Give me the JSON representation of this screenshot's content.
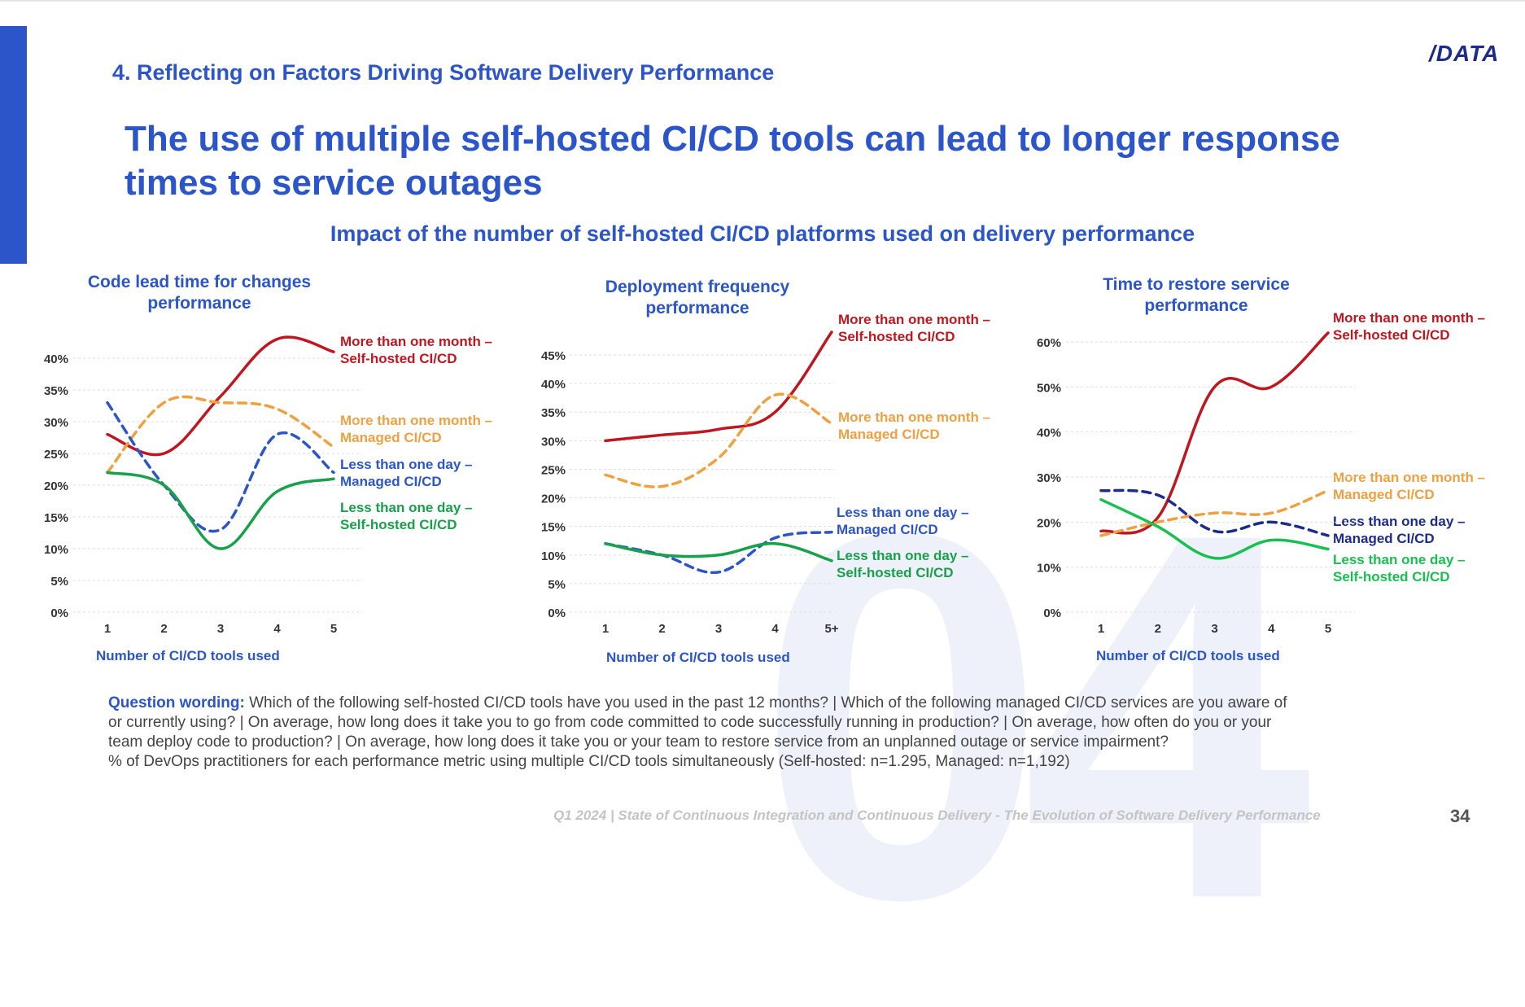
{
  "section_label": "4. Reflecting on Factors Driving Software Delivery Performance",
  "logo": "/DATA",
  "title": "The use of multiple self-hosted CI/CD tools can lead to longer response times to service outages",
  "subtitle": "Impact of the number of self-hosted CI/CD platforms used on delivery performance",
  "watermark": "04",
  "question": {
    "label": "Question wording:",
    "text": "Which of the following self-hosted CI/CD tools have you used in the past 12 months? | Which of the following managed CI/CD services are you aware of or currently using? |  On average, how long does it take you to go from code committed to code successfully running in production? | On average, how often do you or your team deploy code to production? | On average, how long does it take you or your team to restore service from an unplanned outage or service impairment?",
    "note": "% of DevOps practitioners for each performance metric using multiple CI/CD tools simultaneously (Self-hosted: n=1.295, Managed: n=1,192)"
  },
  "footer": "Q1 2024 | State of Continuous Integration and Continuous Delivery - The Evolution of Software Delivery Performance",
  "page_number": "34",
  "colors": {
    "accent": "#2b55c9",
    "month_self": "#c0161f",
    "month_managed": "#f0a040",
    "day_managed": "#2b55c9",
    "day_self": "#18a04a",
    "grid": "#dddddd"
  },
  "chart_data": [
    {
      "type": "line",
      "title": "Code lead time for changes performance",
      "xlabel": "Number of CI/CD tools used",
      "ylabel": "",
      "categories": [
        "1",
        "2",
        "3",
        "4",
        "5"
      ],
      "yticks": [
        "0%",
        "5%",
        "10%",
        "15%",
        "20%",
        "25%",
        "30%",
        "35%",
        "40%"
      ],
      "ylim": [
        0,
        40
      ],
      "series": [
        {
          "name": "More than one month – Self-hosted CI/CD",
          "line1": "More than one month –",
          "line2": "Self-hosted CI/CD",
          "values": [
            28,
            25,
            34,
            43,
            41
          ],
          "color": "#c0161f",
          "dashed": false
        },
        {
          "name": "More than one month – Managed CI/CD",
          "line1": "More than one month –",
          "line2": "Managed CI/CD",
          "values": [
            22,
            33,
            33,
            32,
            26
          ],
          "color": "#f0a040",
          "dashed": true
        },
        {
          "name": "Less than one day – Managed CI/CD",
          "line1": "Less than one day –",
          "line2": "Managed CI/CD",
          "values": [
            33,
            20,
            13,
            28,
            22
          ],
          "color": "#2b55c9",
          "dashed": true
        },
        {
          "name": "Less than one day – Self-hosted CI/CD",
          "line1": "Less than one day –",
          "line2": "Self-hosted CI/CD",
          "values": [
            22,
            20,
            10,
            19,
            21
          ],
          "color": "#18a04a",
          "dashed": false
        }
      ]
    },
    {
      "type": "line",
      "title": "Deployment frequency performance",
      "xlabel": "Number of CI/CD tools used",
      "ylabel": "",
      "categories": [
        "1",
        "2",
        "3",
        "4",
        "5+"
      ],
      "yticks": [
        "0%",
        "5%",
        "10%",
        "15%",
        "20%",
        "25%",
        "30%",
        "35%",
        "40%",
        "45%"
      ],
      "ylim": [
        0,
        45
      ],
      "series": [
        {
          "name": "More than one month – Self-hosted CI/CD",
          "line1": "More than one month –",
          "line2": "Self-hosted CI/CD",
          "values": [
            30,
            31,
            32,
            35,
            49
          ],
          "color": "#c0161f",
          "dashed": false
        },
        {
          "name": "More than one month – Managed CI/CD",
          "line1": "More than one month –",
          "line2": "Managed CI/CD",
          "values": [
            24,
            22,
            27,
            38,
            33
          ],
          "color": "#f0a040",
          "dashed": true
        },
        {
          "name": "Less than one day – Managed CI/CD",
          "line1": "Less than one day –",
          "line2": "Managed CI/CD",
          "values": [
            12,
            10,
            7,
            13,
            14
          ],
          "color": "#2b55c9",
          "dashed": true
        },
        {
          "name": "Less than one day – Self-hosted CI/CD",
          "line1": "Less than one day –",
          "line2": "Self-hosted CI/CD",
          "values": [
            12,
            10,
            10,
            12,
            9
          ],
          "color": "#18a04a",
          "dashed": false
        }
      ]
    },
    {
      "type": "line",
      "title": "Time to restore service performance",
      "xlabel": "Number of CI/CD tools used",
      "ylabel": "",
      "categories": [
        "1",
        "2",
        "3",
        "4",
        "5"
      ],
      "yticks": [
        "0%",
        "10%",
        "20%",
        "30%",
        "40%",
        "50%",
        "60%"
      ],
      "ylim": [
        0,
        60
      ],
      "series": [
        {
          "name": "More than one month – Self-hosted CI/CD",
          "line1": "More than one month –",
          "line2": "Self-hosted CI/CD",
          "values": [
            18,
            21,
            50,
            50,
            62
          ],
          "color": "#c0161f",
          "dashed": false
        },
        {
          "name": "More than one month – Managed CI/CD",
          "line1": "More than one month –",
          "line2": "Managed CI/CD",
          "values": [
            17,
            20,
            22,
            22,
            27
          ],
          "color": "#f0a040",
          "dashed": true
        },
        {
          "name": "Less than one day – Managed CI/CD",
          "line1": "Less than one day –",
          "line2": "Managed CI/CD",
          "values": [
            27,
            26,
            18,
            20,
            17
          ],
          "color": "#1d2b8c",
          "dashed": true
        },
        {
          "name": "Less than one day – Self-hosted CI/CD",
          "line1": "Less than one day –",
          "line2": "Self-hosted CI/CD",
          "values": [
            25,
            19,
            12,
            16,
            14
          ],
          "color": "#18c050",
          "dashed": false
        }
      ]
    }
  ]
}
